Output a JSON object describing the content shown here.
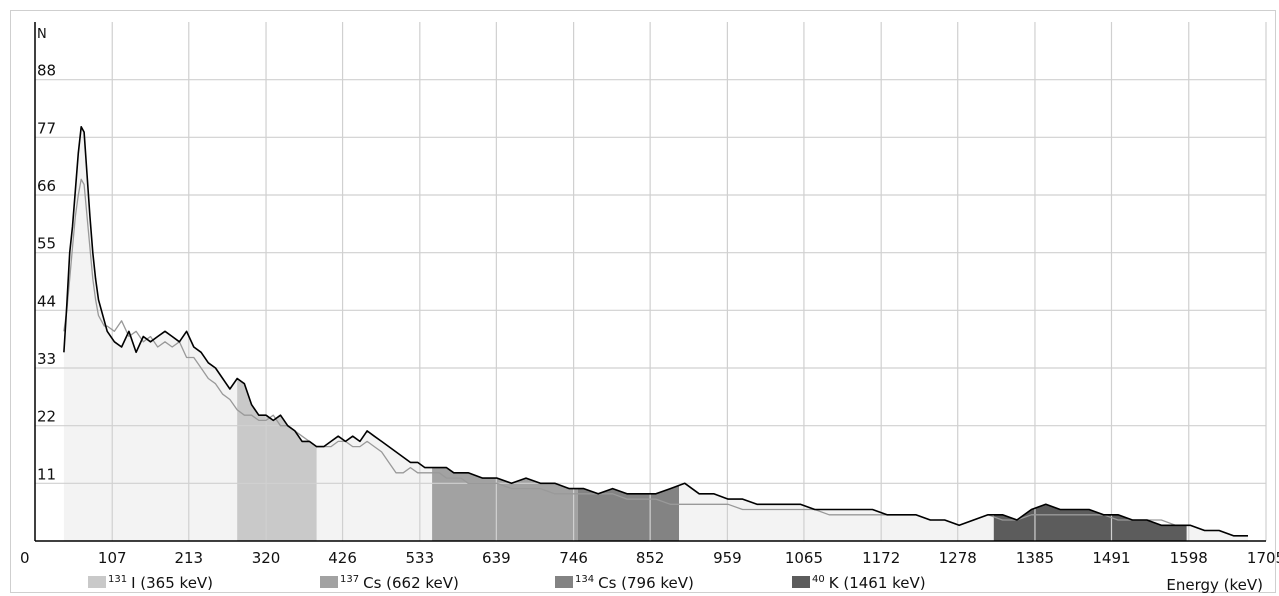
{
  "chart_data": {
    "type": "line",
    "ylabel": "N",
    "xlabel": "Energy (keV)",
    "xlim": [
      0,
      1705
    ],
    "ylim": [
      0,
      99
    ],
    "x_ticks": [
      "0",
      "107",
      "213",
      "320",
      "426",
      "533",
      "639",
      "746",
      "852",
      "959",
      "1065",
      "1172",
      "1278",
      "1385",
      "1491",
      "1598",
      "1705"
    ],
    "y_ticks": [
      "11",
      "22",
      "33",
      "44",
      "55",
      "66",
      "77",
      "88"
    ],
    "grid": true,
    "legend": {
      "position": "bottom",
      "items": [
        {
          "sup": "131",
          "label": "I (365 keV)",
          "color": "#c9c9c9",
          "range": [
            280,
            390
          ]
        },
        {
          "sup": "137",
          "label": "Cs (662 keV)",
          "color": "#a2a2a2",
          "range": [
            550,
            752
          ]
        },
        {
          "sup": "134",
          "label": "Cs (796 keV)",
          "color": "#838383",
          "range": [
            752,
            892
          ]
        },
        {
          "sup": "40",
          "label": "K (1461 keV)",
          "color": "#5c5c5c",
          "range": [
            1328,
            1595
          ]
        }
      ]
    },
    "series": [
      {
        "color": "#000000",
        "x": [
          40,
          44,
          48,
          52,
          56,
          60,
          64,
          68,
          72,
          76,
          80,
          84,
          88,
          92,
          96,
          100,
          110,
          120,
          130,
          140,
          150,
          160,
          170,
          180,
          190,
          200,
          210,
          220,
          230,
          240,
          250,
          260,
          270,
          280,
          290,
          300,
          310,
          320,
          330,
          340,
          350,
          360,
          370,
          380,
          390,
          400,
          410,
          420,
          430,
          440,
          450,
          460,
          470,
          480,
          490,
          500,
          510,
          520,
          530,
          540,
          550,
          560,
          570,
          580,
          590,
          600,
          620,
          640,
          660,
          680,
          700,
          720,
          740,
          760,
          780,
          800,
          820,
          840,
          860,
          880,
          900,
          920,
          940,
          960,
          980,
          1000,
          1020,
          1040,
          1060,
          1080,
          1100,
          1120,
          1140,
          1160,
          1180,
          1200,
          1220,
          1240,
          1260,
          1280,
          1300,
          1320,
          1340,
          1360,
          1380,
          1400,
          1420,
          1440,
          1460,
          1480,
          1500,
          1520,
          1540,
          1560,
          1580,
          1600,
          1620,
          1640,
          1660,
          1680
        ],
        "y": [
          36,
          45,
          55,
          60,
          67,
          74,
          79,
          78,
          70,
          62,
          55,
          50,
          46,
          44,
          42,
          40,
          38,
          37,
          40,
          36,
          39,
          38,
          39,
          40,
          39,
          38,
          40,
          37,
          36,
          34,
          33,
          31,
          29,
          31,
          30,
          26,
          24,
          24,
          23,
          24,
          22,
          21,
          19,
          19,
          18,
          18,
          19,
          20,
          19,
          20,
          19,
          21,
          20,
          19,
          18,
          17,
          16,
          15,
          15,
          14,
          14,
          14,
          14,
          13,
          13,
          13,
          12,
          12,
          11,
          12,
          11,
          11,
          10,
          10,
          9,
          10,
          9,
          9,
          9,
          10,
          11,
          9,
          9,
          8,
          8,
          7,
          7,
          7,
          7,
          6,
          6,
          6,
          6,
          6,
          5,
          5,
          5,
          4,
          4,
          3,
          4,
          5,
          5,
          4,
          6,
          7,
          6,
          6,
          6,
          5,
          5,
          4,
          4,
          3,
          3,
          3,
          2,
          2,
          1,
          1
        ]
      },
      {
        "color": "#999999",
        "x": [
          40,
          44,
          48,
          52,
          56,
          60,
          64,
          68,
          72,
          76,
          80,
          84,
          88,
          92,
          96,
          100,
          110,
          120,
          130,
          140,
          150,
          160,
          170,
          180,
          190,
          200,
          210,
          220,
          230,
          240,
          250,
          260,
          270,
          280,
          290,
          300,
          310,
          320,
          330,
          340,
          350,
          360,
          370,
          380,
          390,
          400,
          410,
          420,
          430,
          440,
          450,
          460,
          470,
          480,
          490,
          500,
          510,
          520,
          530,
          540,
          550,
          560,
          570,
          580,
          590,
          600,
          620,
          640,
          660,
          680,
          700,
          720,
          740,
          760,
          780,
          800,
          820,
          840,
          860,
          880,
          900,
          920,
          940,
          960,
          980,
          1000,
          1020,
          1040,
          1060,
          1080,
          1100,
          1120,
          1140,
          1160,
          1180,
          1200,
          1220,
          1240,
          1260,
          1280,
          1300,
          1320,
          1340,
          1360,
          1380,
          1400,
          1420,
          1440,
          1460,
          1480,
          1500,
          1520,
          1540,
          1560,
          1580,
          1600,
          1620,
          1640,
          1660,
          1680
        ],
        "y": [
          40,
          44,
          50,
          56,
          62,
          66,
          69,
          68,
          62,
          56,
          50,
          46,
          43,
          42,
          41,
          41,
          40,
          42,
          39,
          40,
          38,
          39,
          37,
          38,
          37,
          38,
          35,
          35,
          33,
          31,
          30,
          28,
          27,
          25,
          24,
          24,
          23,
          23,
          24,
          22,
          22,
          21,
          20,
          19,
          18,
          18,
          18,
          19,
          19,
          18,
          18,
          19,
          18,
          17,
          15,
          13,
          13,
          14,
          13,
          13,
          13,
          13,
          12,
          12,
          12,
          11,
          11,
          11,
          10,
          10,
          10,
          9,
          9,
          9,
          9,
          9,
          8,
          8,
          8,
          7,
          7,
          7,
          7,
          7,
          6,
          6,
          6,
          6,
          6,
          6,
          5,
          5,
          5,
          5,
          5,
          5,
          5,
          4,
          4,
          3,
          4,
          5,
          4,
          4,
          5,
          5,
          5,
          5,
          5,
          5,
          4,
          4,
          4,
          4,
          3,
          3,
          2,
          2,
          1,
          1
        ]
      }
    ]
  }
}
